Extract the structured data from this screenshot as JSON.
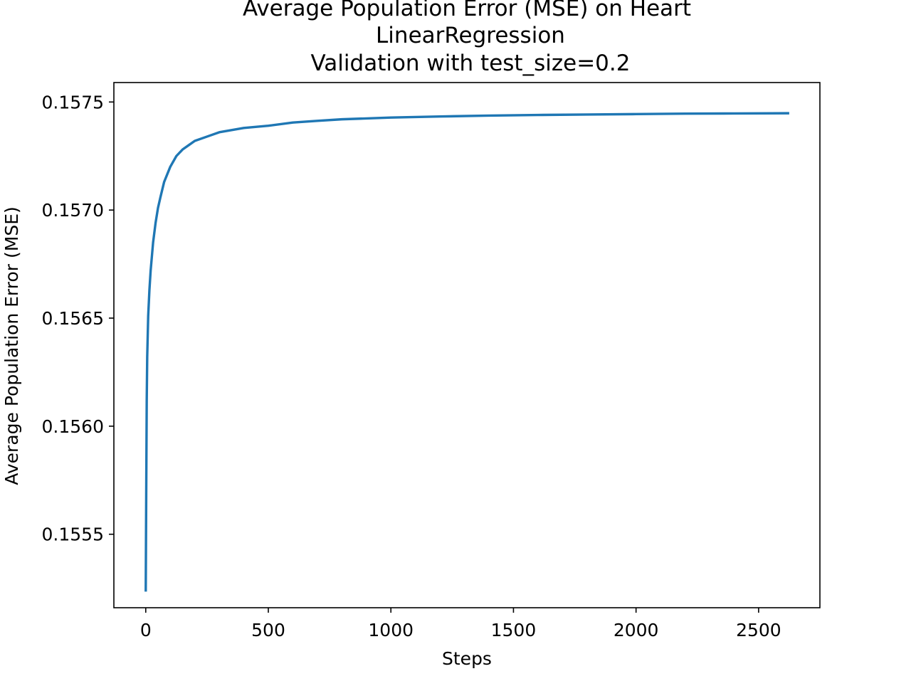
{
  "chart_data": {
    "type": "line",
    "title": [
      "Average Population Error (MSE) on Heart",
      "LinearRegression",
      "Validation with test_size=0.2"
    ],
    "xlabel": "Steps",
    "ylabel": "Average Population Error (MSE)",
    "xlim": [
      -130,
      2750
    ],
    "ylim": [
      0.15516,
      0.15759
    ],
    "xticks": [
      0,
      500,
      1000,
      1500,
      2000,
      2500
    ],
    "xtick_labels": [
      "0",
      "500",
      "1000",
      "1500",
      "2000",
      "2500"
    ],
    "yticks": [
      0.1555,
      0.156,
      0.1565,
      0.157,
      0.1575
    ],
    "ytick_labels": [
      "0.1555",
      "0.1560",
      "0.1565",
      "0.1570",
      "0.1575"
    ],
    "grid": false,
    "legend": "none",
    "series": [
      {
        "color": "#1f77b4",
        "x": [
          0,
          2,
          4,
          6,
          10,
          15,
          20,
          30,
          40,
          50,
          60,
          75,
          100,
          125,
          150,
          175,
          200,
          250,
          300,
          400,
          500,
          600,
          700,
          800,
          1000,
          1200,
          1400,
          1600,
          1800,
          2000,
          2200,
          2400,
          2620
        ],
        "y": [
          0.15524,
          0.1557,
          0.15612,
          0.15632,
          0.15651,
          0.15663,
          0.15672,
          0.15685,
          0.15694,
          0.15701,
          0.15706,
          0.15713,
          0.1572,
          0.15725,
          0.15728,
          0.1573,
          0.15732,
          0.15734,
          0.15736,
          0.15738,
          0.15739,
          0.157405,
          0.157413,
          0.15742,
          0.157428,
          0.157433,
          0.157437,
          0.15744,
          0.157442,
          0.157444,
          0.157446,
          0.157447,
          0.157448
        ]
      }
    ]
  }
}
